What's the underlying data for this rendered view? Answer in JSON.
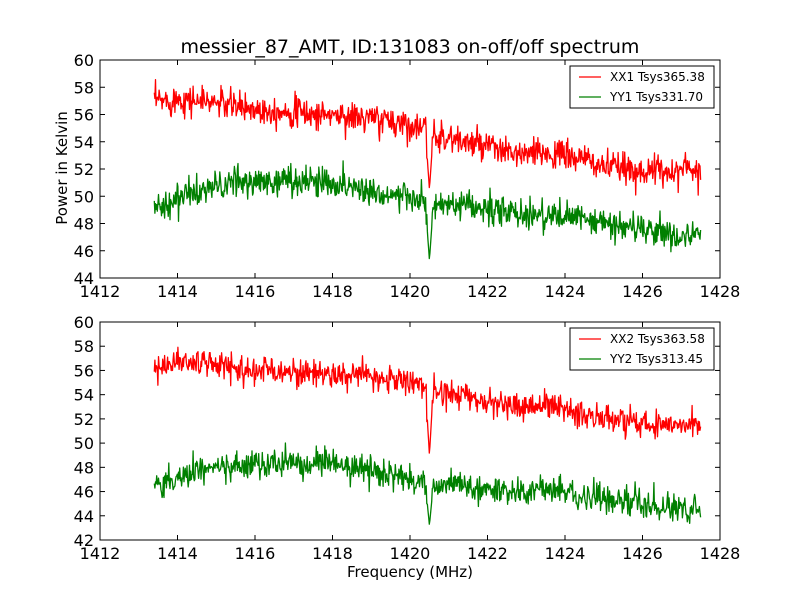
{
  "chart_data": [
    {
      "type": "line",
      "title": "messier_87_AMT, ID:131083 on-off/off spectrum",
      "xlabel": "",
      "ylabel": "Power in Kelvin",
      "xlim": [
        1412,
        1428
      ],
      "ylim": [
        44,
        60
      ],
      "xticks": [
        "1412",
        "1414",
        "1416",
        "1418",
        "1420",
        "1422",
        "1424",
        "1426",
        "1428"
      ],
      "yticks": [
        "44",
        "46",
        "48",
        "50",
        "52",
        "54",
        "56",
        "58",
        "60"
      ],
      "legend_position": "top-right",
      "grid": false,
      "series": [
        {
          "name": "XX1 Tsys365.38",
          "color": "#ff0000",
          "x": [
            1413.4,
            1413.8,
            1414.0,
            1414.5,
            1415.0,
            1415.5,
            1416.0,
            1416.5,
            1417.0,
            1417.5,
            1418.0,
            1418.5,
            1419.0,
            1419.5,
            1420.0,
            1420.4,
            1420.5,
            1420.6,
            1421.0,
            1421.5,
            1422.0,
            1422.5,
            1423.0,
            1423.5,
            1424.0,
            1424.5,
            1425.0,
            1425.5,
            1426.0,
            1426.5,
            1427.0,
            1427.5
          ],
          "values": [
            57.0,
            57.0,
            57.2,
            57.0,
            56.9,
            56.6,
            56.4,
            56.3,
            56.2,
            56.0,
            56.0,
            55.8,
            55.7,
            55.5,
            55.3,
            54.9,
            50.5,
            54.6,
            54.3,
            53.9,
            53.6,
            53.2,
            53.0,
            53.2,
            53.0,
            52.7,
            52.2,
            52.0,
            51.9,
            51.8,
            52.0,
            52.0
          ]
        },
        {
          "name": "YY1 Tsys331.70",
          "color": "#008000",
          "x": [
            1413.4,
            1413.8,
            1414.0,
            1414.5,
            1415.0,
            1415.5,
            1416.0,
            1416.5,
            1417.0,
            1417.5,
            1418.0,
            1418.5,
            1419.0,
            1419.5,
            1420.0,
            1420.4,
            1420.5,
            1420.6,
            1421.0,
            1421.5,
            1422.0,
            1422.5,
            1423.0,
            1423.5,
            1424.0,
            1424.5,
            1425.0,
            1425.5,
            1426.0,
            1426.5,
            1427.0,
            1427.5
          ],
          "values": [
            49.2,
            49.5,
            49.9,
            50.3,
            50.7,
            51.0,
            51.0,
            51.1,
            51.2,
            51.1,
            51.0,
            50.7,
            50.4,
            50.1,
            49.9,
            49.5,
            45.3,
            49.3,
            49.3,
            49.2,
            49.0,
            48.8,
            48.7,
            48.6,
            48.5,
            48.3,
            48.0,
            47.8,
            47.6,
            47.3,
            47.1,
            47.0
          ]
        }
      ]
    },
    {
      "type": "line",
      "title": "",
      "xlabel": "Frequency (MHz)",
      "ylabel": "",
      "xlim": [
        1412,
        1428
      ],
      "ylim": [
        42,
        60
      ],
      "xticks": [
        "1412",
        "1414",
        "1416",
        "1418",
        "1420",
        "1422",
        "1424",
        "1426",
        "1428"
      ],
      "yticks": [
        "42",
        "44",
        "46",
        "48",
        "50",
        "52",
        "54",
        "56",
        "58",
        "60"
      ],
      "legend_position": "top-right",
      "grid": false,
      "series": [
        {
          "name": "XX2 Tsys363.58",
          "color": "#ff0000",
          "x": [
            1413.4,
            1413.8,
            1414.0,
            1414.5,
            1415.0,
            1415.5,
            1416.0,
            1416.5,
            1417.0,
            1417.5,
            1418.0,
            1418.5,
            1419.0,
            1419.5,
            1420.0,
            1420.4,
            1420.5,
            1420.6,
            1421.0,
            1421.5,
            1422.0,
            1422.5,
            1423.0,
            1423.5,
            1424.0,
            1424.5,
            1425.0,
            1425.5,
            1426.0,
            1426.5,
            1427.0,
            1427.5
          ],
          "values": [
            56.3,
            56.5,
            56.8,
            56.6,
            56.5,
            56.2,
            56.0,
            56.0,
            55.9,
            55.8,
            55.7,
            55.6,
            55.4,
            55.3,
            55.1,
            54.8,
            49.0,
            54.5,
            54.1,
            53.8,
            53.4,
            53.1,
            53.0,
            53.2,
            52.8,
            52.4,
            52.0,
            51.8,
            51.6,
            51.6,
            51.8,
            51.6
          ]
        },
        {
          "name": "YY2 Tsys313.45",
          "color": "#008000",
          "x": [
            1413.4,
            1413.8,
            1414.0,
            1414.5,
            1415.0,
            1415.5,
            1416.0,
            1416.5,
            1417.0,
            1417.5,
            1418.0,
            1418.5,
            1419.0,
            1419.5,
            1420.0,
            1420.4,
            1420.5,
            1420.6,
            1421.0,
            1421.5,
            1422.0,
            1422.5,
            1423.0,
            1423.5,
            1424.0,
            1424.5,
            1425.0,
            1425.5,
            1426.0,
            1426.5,
            1427.0,
            1427.5
          ],
          "values": [
            46.5,
            46.8,
            47.2,
            47.6,
            48.0,
            48.1,
            48.2,
            48.3,
            48.4,
            48.3,
            48.3,
            48.0,
            47.7,
            47.3,
            47.0,
            46.7,
            43.2,
            46.5,
            46.6,
            46.4,
            46.2,
            46.1,
            46.0,
            46.1,
            45.9,
            45.7,
            45.4,
            45.1,
            44.9,
            44.7,
            44.6,
            44.5
          ]
        }
      ]
    }
  ]
}
